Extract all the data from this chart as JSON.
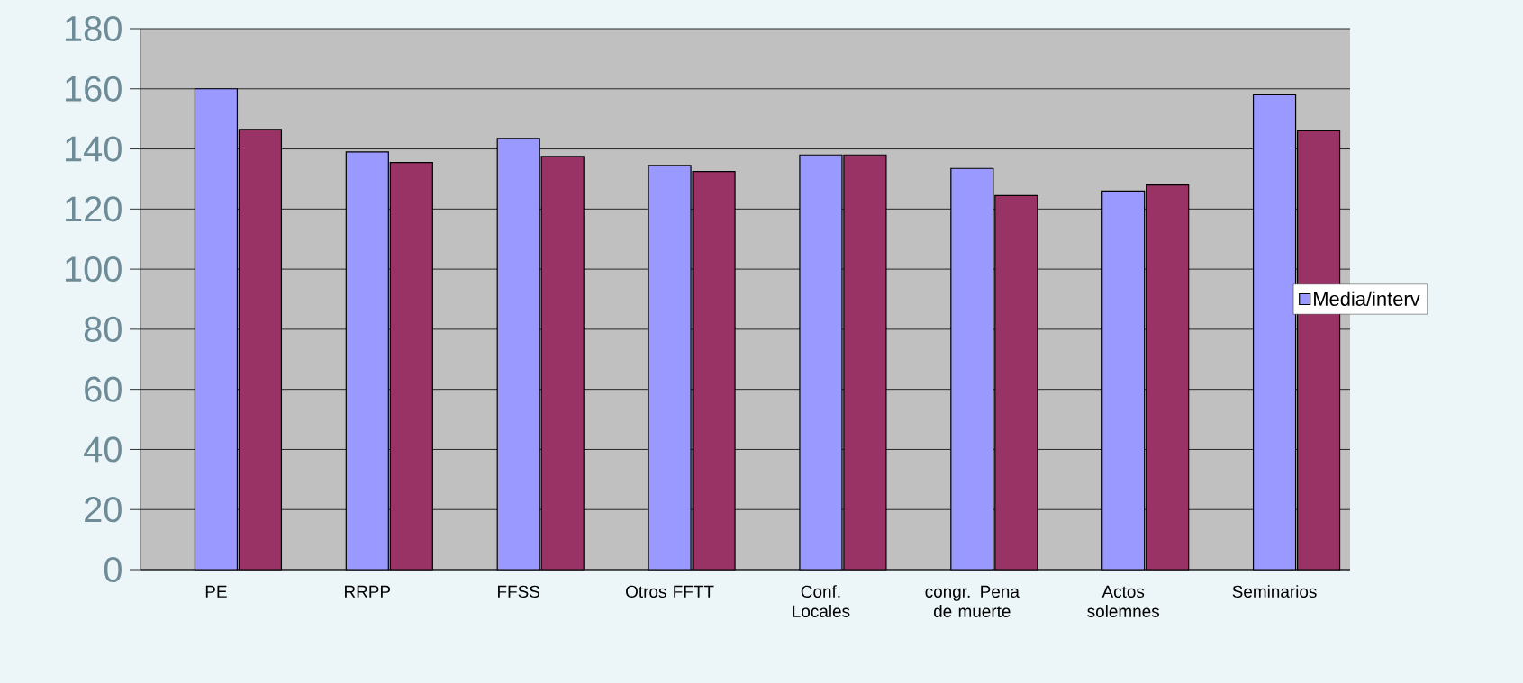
{
  "chart_data": {
    "type": "bar",
    "categories": [
      "PE",
      "RRPP",
      "FFSS",
      "Otros FFTT",
      "Conf. Locales",
      "congr. Pena de muerte",
      "Actos solemnes",
      "Seminarios"
    ],
    "series": [
      {
        "name": "Media/interv",
        "color": "#9999ff",
        "values": [
          160,
          139,
          143.5,
          134.5,
          138,
          133.5,
          126,
          158
        ]
      },
      {
        "color": "#993366",
        "values": [
          146.5,
          135.5,
          137.5,
          132.5,
          138,
          124.5,
          128,
          146
        ]
      }
    ],
    "ylim": [
      0,
      180
    ],
    "yticks": [
      0,
      20,
      40,
      60,
      80,
      100,
      120,
      140,
      160,
      180
    ],
    "grid": "y",
    "legend": "right"
  }
}
